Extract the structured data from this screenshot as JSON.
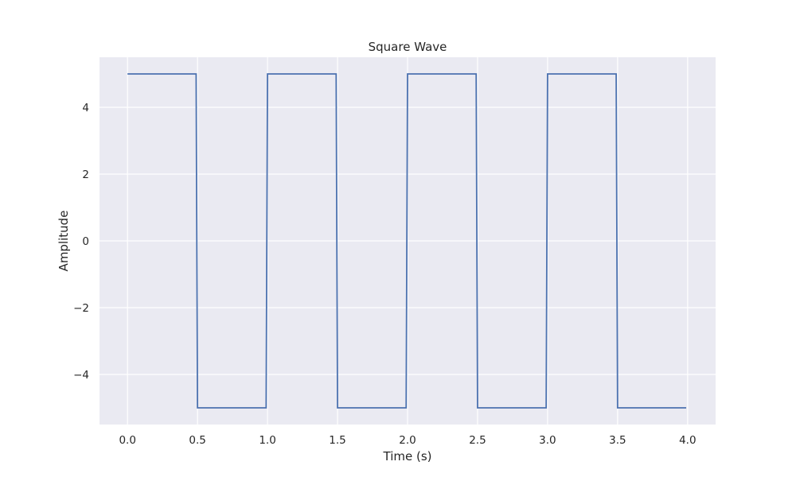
{
  "chart_data": {
    "type": "line",
    "title": "Square Wave",
    "xlabel": "Time (s)",
    "ylabel": "Amplitude",
    "xlim": [
      -0.2,
      4.2
    ],
    "ylim": [
      -5.5,
      5.5
    ],
    "grid": true,
    "x_ticks": [
      0.0,
      0.5,
      1.0,
      1.5,
      2.0,
      2.5,
      3.0,
      3.5,
      4.0
    ],
    "x_tick_labels": [
      "0.0",
      "0.5",
      "1.0",
      "1.5",
      "2.0",
      "2.5",
      "3.0",
      "3.5",
      "4.0"
    ],
    "y_ticks": [
      -4,
      -2,
      0,
      2,
      4
    ],
    "y_tick_labels": [
      "−4",
      "−2",
      "0",
      "2",
      "4"
    ],
    "series": [
      {
        "color": "#4c72b0",
        "x": [
          0.0,
          0.49,
          0.5,
          0.99,
          1.0,
          1.49,
          1.5,
          1.99,
          2.0,
          2.49,
          2.5,
          2.99,
          3.0,
          3.49,
          3.5,
          3.99
        ],
        "y": [
          5,
          5,
          -5,
          -5,
          5,
          5,
          -5,
          -5,
          5,
          5,
          -5,
          -5,
          5,
          5,
          -5,
          -5
        ]
      }
    ]
  },
  "colors": {
    "plot_background": "#eaeaf2",
    "grid": "#ffffff",
    "line": "#4c72b0"
  }
}
